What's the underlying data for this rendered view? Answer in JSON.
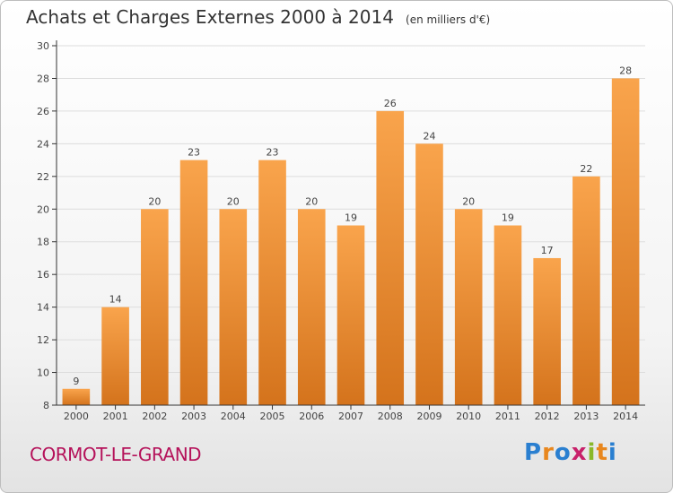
{
  "title": "Achats et Charges Externes 2000 à 2014",
  "unit": "(en milliers d'€)",
  "town": "CORMOT-LE-GRAND",
  "logo": {
    "text": "Proxiti",
    "letters": [
      {
        "ch": "P",
        "color": "#2a7fd0"
      },
      {
        "ch": "r",
        "color": "#e8871e"
      },
      {
        "ch": "o",
        "color": "#2a7fd0"
      },
      {
        "ch": "x",
        "color": "#c8216a"
      },
      {
        "ch": "i",
        "color": "#8ab82a"
      },
      {
        "ch": "t",
        "color": "#e8871e"
      },
      {
        "ch": "i",
        "color": "#2a7fd0"
      }
    ]
  },
  "colors": {
    "bar_top": "#f9a44c",
    "bar_bottom": "#d4731c",
    "town": "#b5125a",
    "grid": "#dddddd"
  },
  "chart_data": {
    "type": "bar",
    "categories": [
      "2000",
      "2001",
      "2002",
      "2003",
      "2004",
      "2005",
      "2006",
      "2007",
      "2008",
      "2009",
      "2010",
      "2011",
      "2012",
      "2013",
      "2014"
    ],
    "values": [
      9,
      14,
      20,
      23,
      20,
      23,
      20,
      19,
      26,
      24,
      20,
      19,
      17,
      22,
      28
    ],
    "ylim": [
      8,
      30
    ],
    "yticks": [
      8,
      10,
      12,
      14,
      16,
      18,
      20,
      22,
      24,
      26,
      28,
      30
    ],
    "grid": true,
    "legend": false
  }
}
